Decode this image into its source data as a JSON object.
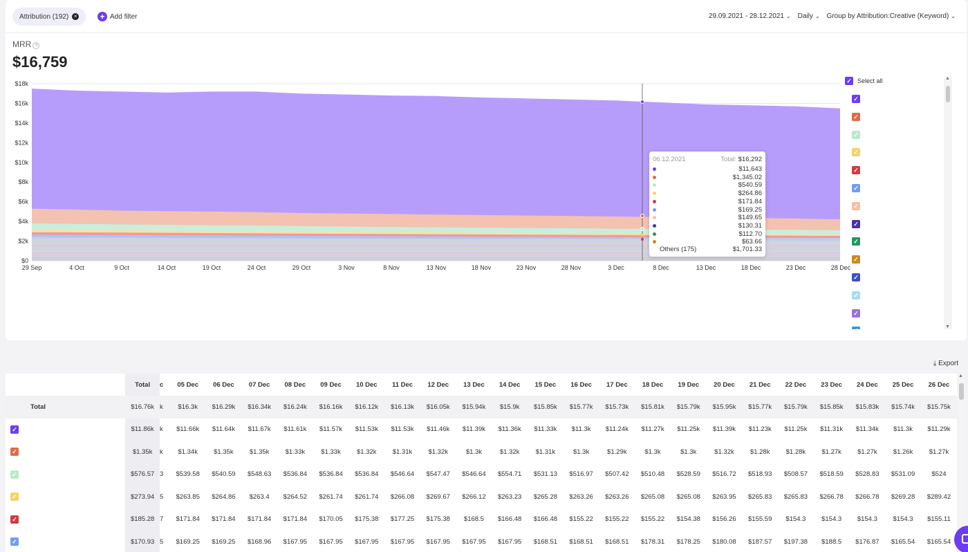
{
  "filters": {
    "chip_label": "Attribution (192)",
    "add_filter_label": "Add filter"
  },
  "controls": {
    "date_range": "29.09.2021 - 28.12.2021",
    "granularity": "Daily",
    "group_by": "Group by Attribution:Creative (Keyword)"
  },
  "metric": {
    "label": "MRR",
    "value": "$16,759"
  },
  "legend": {
    "select_all_label": "Select all",
    "colors": [
      "#6c3df2",
      "#e06c44",
      "#b8ebc8",
      "#f5d368",
      "#d33a42",
      "#6f9ef0",
      "#f8bfa0",
      "#4b30a8",
      "#1f9a5a",
      "#c88a1f",
      "#3a53c6",
      "#a8dcf2",
      "#9b6fe0",
      "#3a98e0"
    ]
  },
  "tooltip": {
    "date": "06.12.2021",
    "total_label": "Total:",
    "total_value": "$16,292",
    "values": [
      "$11,643",
      "$1,345.02",
      "$540.59",
      "$264.86",
      "$171.84",
      "$169.25",
      "$149.65",
      "$130.31",
      "$112.70",
      "$63.66"
    ],
    "dot_colors": [
      "#6c3df2",
      "#e06c44",
      "#b8ebc8",
      "#f5d368",
      "#d33a42",
      "#6f9ef0",
      "#f8bfa0",
      "#4b30a8",
      "#1f9a5a",
      "#c88a1f"
    ],
    "others_label": "Others (175)",
    "others_value": "$1,701.33"
  },
  "chart_data": {
    "type": "area",
    "x_tick_labels": [
      "29 Sep",
      "4 Oct",
      "9 Oct",
      "14 Oct",
      "19 Oct",
      "24 Oct",
      "29 Oct",
      "3 Nov",
      "8 Nov",
      "13 Nov",
      "18 Nov",
      "23 Nov",
      "28 Nov",
      "3 Dec",
      "8 Dec",
      "13 Dec",
      "18 Dec",
      "23 Dec",
      "28 Dec"
    ],
    "y_tick_labels": [
      "$0",
      "$2k",
      "$4k",
      "$6k",
      "$8k",
      "$10k",
      "$12k",
      "$14k",
      "$16k",
      "$18k"
    ],
    "ylim": [
      0,
      18000
    ],
    "hover_date": "6 Dec",
    "series": [
      {
        "color": "#b79dfb",
        "values": [
          17500,
          17300,
          17200,
          17100,
          17200,
          17200,
          17000,
          16900,
          16800,
          16750,
          16600,
          16500,
          16400,
          16300,
          16100,
          15900,
          15800,
          15700,
          15500
        ]
      },
      {
        "color": "#f4c2b0",
        "values": [
          5300,
          5200,
          5100,
          5050,
          5000,
          4950,
          4850,
          4800,
          4750,
          4700,
          4650,
          4600,
          4550,
          4500,
          4450,
          4400,
          4350,
          4300,
          4200
        ]
      },
      {
        "color": "#c9eedd",
        "values": [
          3800,
          3750,
          3700,
          3650,
          3600,
          3580,
          3520,
          3480,
          3440,
          3400,
          3360,
          3330,
          3300,
          3260,
          3240,
          3200,
          3170,
          3140,
          3100
        ]
      },
      {
        "color": "#f7e2a5",
        "values": [
          3200,
          3160,
          3120,
          3080,
          3040,
          3010,
          2980,
          2950,
          2920,
          2890,
          2860,
          2830,
          2800,
          2780,
          2760,
          2740,
          2720,
          2700,
          2680
        ]
      },
      {
        "color": "#ee9a9e",
        "values": [
          2900,
          2880,
          2860,
          2840,
          2810,
          2790,
          2760,
          2740,
          2720,
          2700,
          2680,
          2660,
          2640,
          2620,
          2600,
          2590,
          2570,
          2550,
          2530
        ]
      },
      {
        "color": "#a9c7f5",
        "values": [
          2650,
          2630,
          2610,
          2590,
          2570,
          2550,
          2530,
          2510,
          2490,
          2470,
          2450,
          2440,
          2420,
          2400,
          2390,
          2370,
          2360,
          2340,
          2320
        ]
      },
      {
        "color": "#cfcfd8",
        "values": [
          2400,
          2380,
          2360,
          2340,
          2320,
          2300,
          2280,
          2260,
          2240,
          2220,
          2210,
          2190,
          2170,
          2160,
          2140,
          2130,
          2110,
          2100,
          2080
        ]
      }
    ]
  },
  "table": {
    "export_label": "Export",
    "total_header": "Total",
    "total_row_label": "Total",
    "cut_header": "c",
    "dates": [
      "05 Dec",
      "06 Dec",
      "07 Dec",
      "08 Dec",
      "09 Dec",
      "10 Dec",
      "11 Dec",
      "12 Dec",
      "13 Dec",
      "14 Dec",
      "15 Dec",
      "16 Dec",
      "17 Dec",
      "18 Dec",
      "19 Dec",
      "20 Dec",
      "21 Dec",
      "22 Dec",
      "23 Dec",
      "24 Dec",
      "25 Dec",
      "26 Dec"
    ],
    "rows": [
      {
        "is_total": true,
        "total": "$16.76k",
        "cut": "k",
        "cells": [
          "$16.3k",
          "$16.29k",
          "$16.34k",
          "$16.24k",
          "$16.16k",
          "$16.12k",
          "$16.13k",
          "$16.05k",
          "$15.94k",
          "$15.9k",
          "$15.85k",
          "$15.77k",
          "$15.73k",
          "$15.81k",
          "$15.79k",
          "$15.95k",
          "$15.77k",
          "$15.79k",
          "$15.85k",
          "$15.83k",
          "$15.74k",
          "$15.75k"
        ]
      },
      {
        "color": "#6c3df2",
        "total": "$11.86k",
        "cut": "k",
        "cells": [
          "$11.66k",
          "$11.64k",
          "$11.67k",
          "$11.61k",
          "$11.57k",
          "$11.53k",
          "$11.53k",
          "$11.46k",
          "$11.39k",
          "$11.36k",
          "$11.33k",
          "$11.3k",
          "$11.24k",
          "$11.27k",
          "$11.25k",
          "$11.39k",
          "$11.23k",
          "$11.25k",
          "$11.31k",
          "$11.34k",
          "$11.3k",
          "$11.29k"
        ]
      },
      {
        "color": "#e06c44",
        "total": "$1.35k",
        "cut": "k",
        "cells": [
          "$1.34k",
          "$1.35k",
          "$1.35k",
          "$1.33k",
          "$1.33k",
          "$1.32k",
          "$1.31k",
          "$1.32k",
          "$1.3k",
          "$1.32k",
          "$1.31k",
          "$1.3k",
          "$1.29k",
          "$1.3k",
          "$1.3k",
          "$1.32k",
          "$1.28k",
          "$1.28k",
          "$1.27k",
          "$1.27k",
          "$1.26k",
          "$1.27k"
        ]
      },
      {
        "color": "#b8ebc8",
        "total": "$576.57",
        "cut": "3",
        "cells": [
          "$539.58",
          "$540.59",
          "$548.63",
          "$536.84",
          "$536.84",
          "$536.84",
          "$546.64",
          "$547.47",
          "$546.64",
          "$554.71",
          "$531.13",
          "$516.97",
          "$507.42",
          "$510.48",
          "$528.59",
          "$516.72",
          "$518.93",
          "$508.57",
          "$518.59",
          "$528.83",
          "$531.09",
          "$524"
        ]
      },
      {
        "color": "#f5d368",
        "total": "$273.94",
        "cut": "5",
        "cells": [
          "$263.85",
          "$264.86",
          "$263.4",
          "$264.52",
          "$261.74",
          "$261.74",
          "$266.08",
          "$269.67",
          "$266.12",
          "$263.23",
          "$265.28",
          "$263.26",
          "$263.26",
          "$265.08",
          "$265.08",
          "$263.95",
          "$265.83",
          "$265.83",
          "$266.78",
          "$266.78",
          "$269.28",
          "$289.42"
        ]
      },
      {
        "color": "#d33a42",
        "total": "$185.28",
        "cut": "7",
        "cells": [
          "$171.84",
          "$171.84",
          "$171.84",
          "$171.84",
          "$170.05",
          "$175.38",
          "$177.25",
          "$175.38",
          "$168.5",
          "$166.48",
          "$166.48",
          "$155.22",
          "$155.22",
          "$155.22",
          "$154.38",
          "$156.26",
          "$155.59",
          "$154.3",
          "$154.3",
          "$154.3",
          "$154.3",
          "$155.11"
        ]
      },
      {
        "color": "#6f9ef0",
        "total": "$170.93",
        "cut": "5",
        "cells": [
          "$169.25",
          "$169.25",
          "$168.96",
          "$167.95",
          "$167.95",
          "$167.95",
          "$167.95",
          "$167.95",
          "$167.95",
          "$167.95",
          "$168.51",
          "$168.51",
          "$168.51",
          "$178.31",
          "$178.25",
          "$180.08",
          "$187.57",
          "$197.38",
          "$188.5",
          "$176.87",
          "$165.54",
          "$165.54"
        ]
      }
    ]
  }
}
